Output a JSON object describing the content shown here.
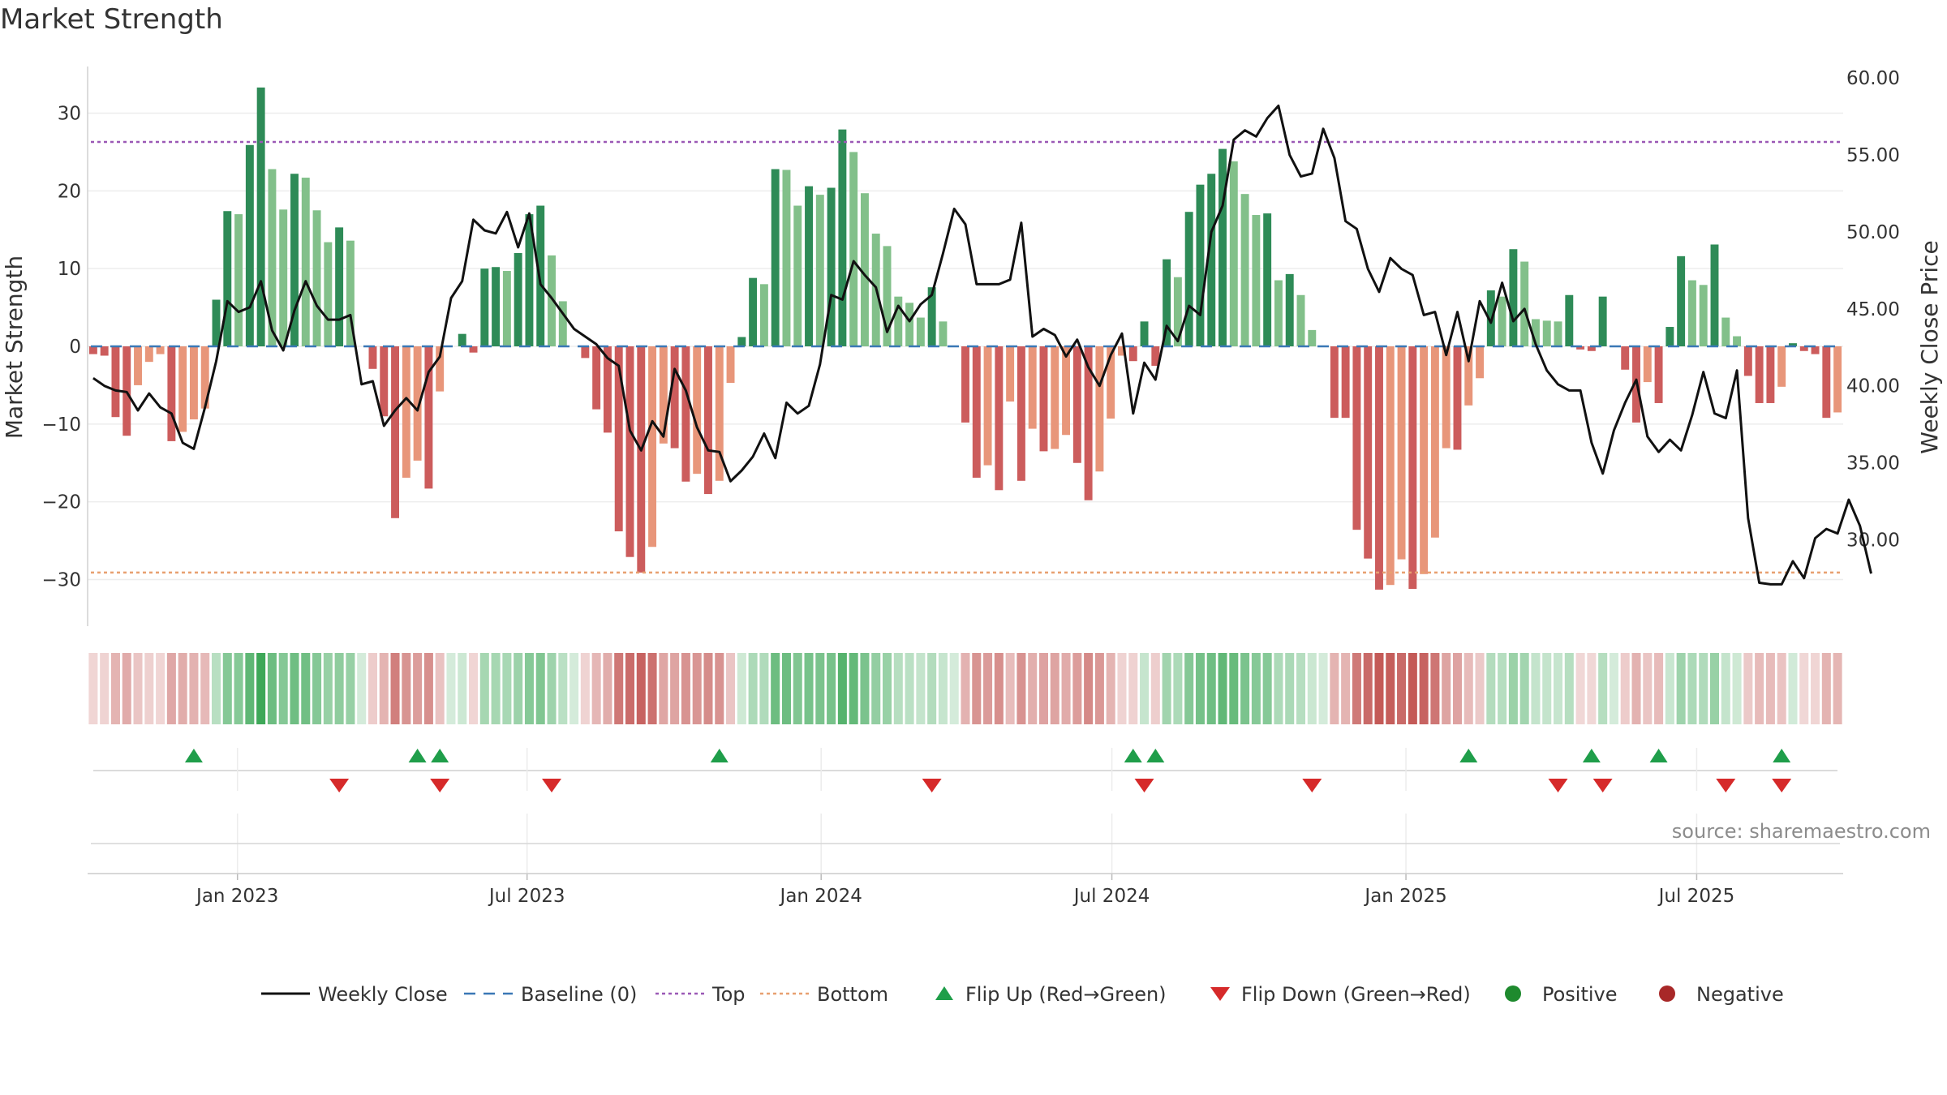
{
  "chart_data": {
    "type": "bar",
    "title": "Market Strength",
    "ylabel": "Market Strength",
    "ylabel_right": "Weekly Close Price",
    "ylim": [
      -36,
      36
    ],
    "ylim_right": [
      24.38,
      60.75
    ],
    "yticks": [
      -30,
      -20,
      -10,
      0,
      10,
      20,
      30
    ],
    "yticks_labels": [
      "−30",
      "−20",
      "−10",
      "0",
      "10",
      "20",
      "30"
    ],
    "yticks_right": [
      "30.00",
      "35.00",
      "40.00",
      "45.00",
      "50.00",
      "55.00",
      "60.00"
    ],
    "xticks": [
      "Jan 2023",
      "Jul 2023",
      "Jan 2024",
      "Jul 2024",
      "Jan 2025",
      "Jul 2025"
    ],
    "xtick_weeks": [
      13.4,
      39.3,
      65.6,
      91.6,
      117.9,
      143.9
    ],
    "weeks": 157,
    "top_threshold": 26.3,
    "bottom_threshold": -29.1,
    "strength": [
      -1,
      -1.2,
      -9.1,
      -11.5,
      -5,
      -2,
      -1,
      -12.2,
      -11,
      -9.4,
      -8,
      6,
      17.4,
      17,
      25.9,
      33.3,
      22.8,
      17.6,
      22.2,
      21.7,
      17.5,
      13.4,
      15.3,
      13.6,
      0,
      -2.9,
      -9,
      -22.1,
      -16.9,
      -14.7,
      -18.3,
      -5.8,
      0,
      1.6,
      -0.8,
      10,
      10.2,
      9.7,
      12,
      17,
      18.1,
      11.7,
      5.8,
      0,
      -1.5,
      -8.1,
      -11.1,
      -23.8,
      -27.1,
      -29.1,
      -25.8,
      -12.5,
      -13.1,
      -17.4,
      -16.4,
      -19,
      -17.3,
      -4.7,
      1.2,
      8.8,
      8,
      22.8,
      22.7,
      18.1,
      20.6,
      19.5,
      20.4,
      27.9,
      25,
      19.7,
      14.5,
      12.9,
      6.4,
      5.6,
      3.7,
      7.6,
      3.2,
      0,
      -9.8,
      -16.9,
      -15.3,
      -18.5,
      -7.1,
      -17.3,
      -10.6,
      -13.5,
      -13.2,
      -11.4,
      -15,
      -19.8,
      -16.1,
      -9.3,
      -1.2,
      -1.9,
      3.2,
      -2.5,
      11.2,
      8.9,
      17.3,
      20.8,
      22.2,
      25.4,
      23.8,
      19.6,
      16.9,
      17.1,
      8.5,
      9.3,
      6.6,
      2.1,
      0,
      -9.2,
      -9.2,
      -23.6,
      -27.3,
      -31.3,
      -30.7,
      -27.4,
      -31.2,
      -29.3,
      -24.6,
      -13.1,
      -13.3,
      -7.6,
      -4.1,
      7.2,
      6.4,
      12.5,
      10.9,
      3.5,
      3.3,
      3.2,
      6.6,
      -0.4,
      -0.6,
      6.4,
      0,
      -3,
      -9.8,
      -4.6,
      -7.3,
      2.5,
      11.6,
      8.5,
      7.9,
      13.1,
      3.7,
      1.3,
      -3.8,
      -7.3,
      -7.3,
      -5.2,
      0.4,
      -0.6,
      -1,
      -9.2,
      -8.5
    ],
    "close": [
      40.5,
      40,
      39.7,
      39.6,
      38.4,
      39.5,
      38.6,
      38.2,
      36.3,
      35.9,
      38.6,
      41.6,
      45.5,
      44.8,
      45.1,
      46.8,
      43.6,
      42.3,
      44.9,
      46.8,
      45.2,
      44.3,
      44.3,
      44.6,
      40.1,
      40.3,
      37.4,
      38.4,
      39.2,
      38.4,
      40.9,
      41.9,
      45.7,
      46.8,
      50.8,
      50.1,
      49.9,
      51.3,
      49,
      51.2,
      46.6,
      45.7,
      44.7,
      43.7,
      43.2,
      42.7,
      41.8,
      41.3,
      37.1,
      35.8,
      37.7,
      36.7,
      41.1,
      39.7,
      37.3,
      35.8,
      35.7,
      33.8,
      34.5,
      35.4,
      36.9,
      35.3,
      38.9,
      38.2,
      38.7,
      41.4,
      45.9,
      45.6,
      48.1,
      47.2,
      46.4,
      43.5,
      45.2,
      44.2,
      45.3,
      45.9,
      48.6,
      51.5,
      50.5,
      46.6,
      46.6,
      46.6,
      46.9,
      50.6,
      43.2,
      43.7,
      43.3,
      41.9,
      43,
      41.2,
      40,
      42,
      43.4,
      38.2,
      41.5,
      40.4,
      43.9,
      42.9,
      45.2,
      44.6,
      50,
      51.7,
      56,
      56.6,
      56.2,
      57.4,
      58.2,
      55,
      53.6,
      53.8,
      56.7,
      54.8,
      50.7,
      50.2,
      47.6,
      46.1,
      48.3,
      47.6,
      47.2,
      44.6,
      44.8,
      42,
      44.8,
      41.6,
      45.5,
      44.1,
      46.7,
      44.2,
      45,
      42.7,
      41,
      40.1,
      39.7,
      39.7,
      36.3,
      34.3,
      37.1,
      38.9,
      40.4,
      36.7,
      35.7,
      36.5,
      35.8,
      38.1,
      40.9,
      38.2,
      37.9,
      41,
      31.4,
      27.2,
      27.1,
      27.1,
      28.6,
      27.5,
      30.1,
      30.7,
      30.4,
      32.6,
      30.9,
      27.8
    ],
    "flip_up": [
      9.5,
      29.5,
      31.5,
      56.5,
      93.5,
      95.5,
      123.5,
      134.5,
      140.5,
      151.5
    ],
    "flip_down": [
      22.5,
      31.5,
      41.5,
      75.5,
      94.5,
      109.5,
      131.5,
      135.5,
      146.5,
      151.5
    ],
    "legend": [
      "Weekly Close",
      "Baseline (0)",
      "Top",
      "Bottom",
      "Flip Up (Red→Green)",
      "Flip Down (Green→Red)",
      "Positive",
      "Negative"
    ],
    "legend_position": "bottom",
    "source": "source: sharemaestro.com"
  },
  "colors": {
    "pos_dark": "#2e8b57",
    "pos_light": "#82c08a",
    "neg_dark": "#cc5c5c",
    "neg_light": "#e8967a",
    "close_line": "#111111",
    "baseline": "#3a78b6",
    "top_line": "#9b59b6",
    "bottom_line": "#e8a070",
    "flip_up": "#1f9e4a",
    "flip_down": "#d62a2a",
    "positive_dot": "#1e8a2e",
    "negative_dot": "#a82828"
  }
}
